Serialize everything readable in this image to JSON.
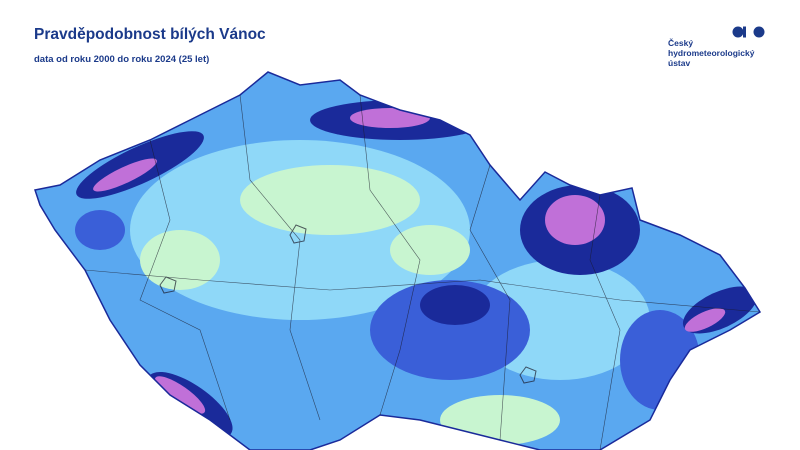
{
  "header": {
    "title": "Pravděpodobnost bílých Vánoc",
    "subtitle": "data od roku 2000 do roku 2024 (25 let)"
  },
  "logo": {
    "lines": [
      "Český",
      "hydrometeorologický",
      "ústav"
    ],
    "color": "#1b3a8a"
  },
  "map": {
    "region": "Czech Republic",
    "colors": {
      "low": "#c8f5d0",
      "light": "#8fd8f8",
      "mid": "#5aa8f0",
      "high": "#3a5fd8",
      "very_high": "#1a2a9a",
      "highest": "#c070d8",
      "border": "#1a1a2a"
    }
  }
}
